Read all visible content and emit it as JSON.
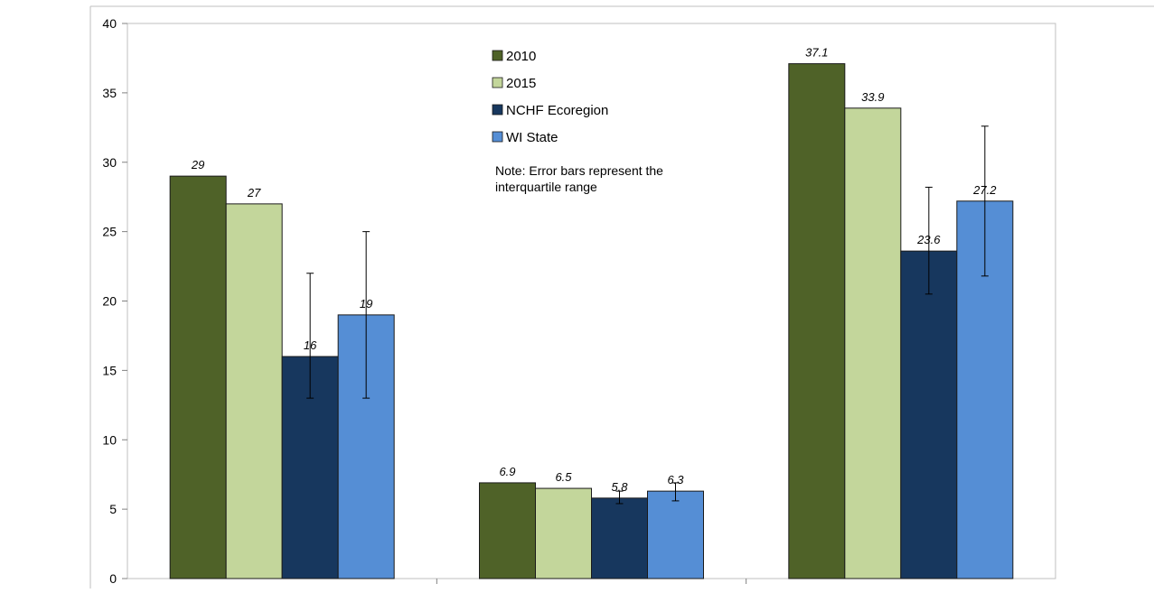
{
  "chart_data": {
    "type": "bar",
    "title": "",
    "xlabel": "",
    "ylabel": "",
    "ylim": [
      0,
      40
    ],
    "yticks": [
      0,
      5,
      10,
      15,
      20,
      25,
      30,
      35,
      40
    ],
    "categories": [
      "",
      "",
      ""
    ],
    "grid": false,
    "legend_position": "top-center",
    "series": [
      {
        "name": "2010",
        "color": "#4f6228",
        "values": [
          29,
          6.9,
          37.1
        ],
        "labels": [
          "29",
          "6.9",
          "37.1"
        ],
        "error_low": [
          null,
          null,
          null
        ],
        "error_high": [
          null,
          null,
          null
        ]
      },
      {
        "name": "2015",
        "color": "#c3d69b",
        "values": [
          27,
          6.5,
          33.9
        ],
        "labels": [
          "27",
          "6.5",
          "33.9"
        ],
        "error_low": [
          null,
          null,
          null
        ],
        "error_high": [
          null,
          null,
          null
        ]
      },
      {
        "name": "NCHF Ecoregion",
        "color": "#17375e",
        "values": [
          16,
          5.8,
          23.6
        ],
        "labels": [
          "16",
          "5.8",
          "23.6"
        ],
        "error_low": [
          13,
          5.4,
          20.5
        ],
        "error_high": [
          22,
          6.3,
          28.2
        ]
      },
      {
        "name": "WI State",
        "color": "#558ed5",
        "values": [
          19,
          6.3,
          27.2
        ],
        "labels": [
          "19",
          "6.3",
          "27.2"
        ],
        "error_low": [
          13,
          5.6,
          21.8
        ],
        "error_high": [
          25,
          6.9,
          32.6
        ]
      }
    ],
    "annotations": [
      "Note: Error bars represent the",
      "interquartile range"
    ]
  }
}
